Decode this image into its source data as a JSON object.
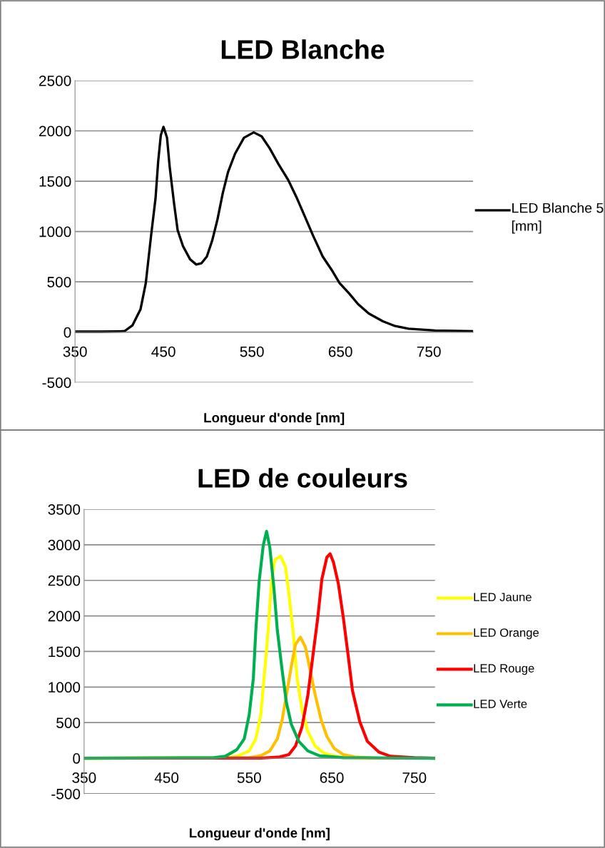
{
  "chart_data": [
    {
      "type": "line",
      "title": "LED Blanche",
      "xlabel": "Longueur d'onde [nm]",
      "xlim": [
        350,
        800
      ],
      "xticks": [
        350,
        450,
        550,
        650,
        750
      ],
      "ylim": [
        -500,
        2500
      ],
      "yticks": [
        -500,
        0,
        500,
        1000,
        1500,
        2000,
        2500
      ],
      "grid": "y",
      "legend": "right",
      "series": [
        {
          "name": "LED Blanche 5 [mm]",
          "color": "#000000",
          "x": [
            350,
            380,
            400,
            406,
            415,
            424,
            430,
            436,
            441,
            444,
            447,
            450,
            454,
            457,
            462,
            466,
            472,
            480,
            487,
            493,
            499,
            505,
            511,
            517,
            523,
            531,
            541,
            552,
            561,
            570,
            580,
            591,
            601,
            610,
            619,
            630,
            640,
            649,
            660,
            670,
            682,
            698,
            712,
            727,
            757,
            800
          ],
          "values": [
            5,
            5,
            8,
            10,
            68,
            226,
            488,
            961,
            1328,
            1696,
            1958,
            2040,
            1932,
            1643,
            1276,
            1013,
            856,
            725,
            672,
            685,
            751,
            908,
            1118,
            1381,
            1591,
            1775,
            1932,
            1985,
            1945,
            1827,
            1670,
            1512,
            1328,
            1145,
            961,
            751,
            620,
            488,
            383,
            278,
            186,
            108,
            60,
            34,
            16,
            10
          ]
        }
      ]
    },
    {
      "type": "line",
      "title": "LED de couleurs",
      "xlabel": "Longueur d'onde [nm]",
      "xlim": [
        350,
        775
      ],
      "xticks": [
        350,
        450,
        550,
        650,
        750
      ],
      "ylim": [
        -500,
        3500
      ],
      "yticks": [
        -500,
        0,
        500,
        1000,
        1500,
        2000,
        2500,
        3000,
        3500
      ],
      "grid": "y",
      "legend": "right",
      "series": [
        {
          "name": "LED Jaune",
          "color": "#ffff00",
          "x": [
            350,
            521,
            535,
            550,
            558,
            564,
            568,
            573,
            577,
            581,
            588,
            594,
            598,
            603,
            608,
            614,
            621,
            630,
            641,
            658,
            693,
            775
          ],
          "values": [
            0,
            7,
            27,
            102,
            272,
            612,
            1122,
            1802,
            2483,
            2789,
            2840,
            2687,
            2313,
            1802,
            1122,
            680,
            374,
            170,
            68,
            17,
            0,
            0
          ]
        },
        {
          "name": "LED Orange",
          "color": "#ffc000",
          "x": [
            350,
            550,
            564,
            575,
            584,
            590,
            595,
            601,
            606,
            612,
            618,
            624,
            630,
            637,
            644,
            653,
            664,
            678,
            707,
            775
          ],
          "values": [
            0,
            7,
            34,
            102,
            272,
            544,
            884,
            1292,
            1598,
            1700,
            1564,
            1224,
            884,
            544,
            306,
            136,
            51,
            17,
            0,
            0
          ]
        },
        {
          "name": "LED Rouge",
          "color": "#ff0000",
          "x": [
            350,
            564,
            587,
            598,
            606,
            614,
            621,
            627,
            633,
            638,
            644,
            648,
            652,
            658,
            664,
            670,
            675,
            684,
            693,
            707,
            721,
            750,
            775
          ],
          "values": [
            0,
            0,
            17,
            51,
            170,
            442,
            884,
            1428,
            1973,
            2517,
            2823,
            2874,
            2755,
            2449,
            1973,
            1428,
            952,
            510,
            238,
            85,
            27,
            7,
            0
          ]
        },
        {
          "name": "LED Verte",
          "color": "#00b050",
          "x": [
            350,
            507,
            521,
            535,
            544,
            550,
            555,
            558,
            562,
            567,
            571,
            575,
            580,
            584,
            590,
            595,
            601,
            610,
            621,
            635,
            664,
            775
          ],
          "values": [
            0,
            7,
            27,
            119,
            272,
            612,
            1122,
            1802,
            2483,
            2993,
            3190,
            2959,
            2381,
            1802,
            1224,
            782,
            476,
            238,
            102,
            34,
            7,
            0
          ]
        }
      ]
    }
  ]
}
